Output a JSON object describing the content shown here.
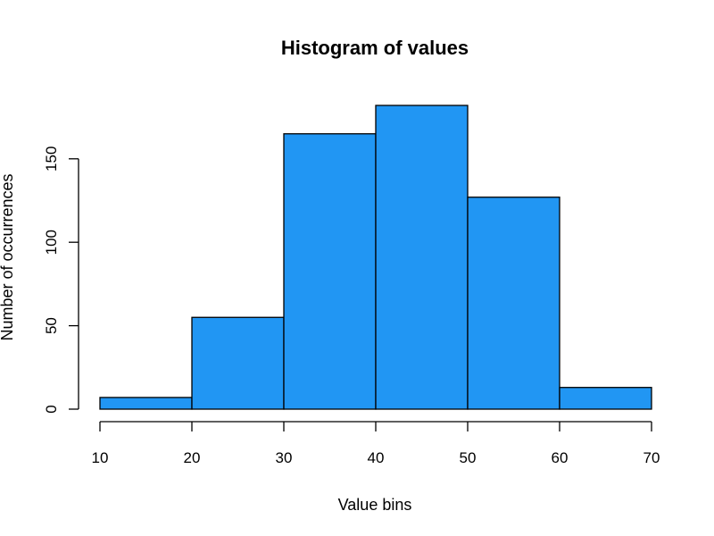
{
  "chart_data": {
    "type": "bar",
    "title": "Histogram of values",
    "xlabel": "Value bins",
    "ylabel": "Number of occurrences",
    "bins": [
      {
        "from": 10,
        "to": 20,
        "count": 7
      },
      {
        "from": 20,
        "to": 30,
        "count": 55
      },
      {
        "from": 30,
        "to": 40,
        "count": 165
      },
      {
        "from": 40,
        "to": 50,
        "count": 182
      },
      {
        "from": 50,
        "to": 60,
        "count": 127
      },
      {
        "from": 60,
        "to": 70,
        "count": 13
      }
    ],
    "xlim": [
      10,
      70
    ],
    "ylim": [
      0,
      182
    ],
    "x_ticks": [
      "10",
      "20",
      "30",
      "40",
      "50",
      "60",
      "70"
    ],
    "y_ticks": [
      "0",
      "50",
      "100",
      "150"
    ],
    "bar_color": "#2196F3",
    "bar_edge_color": "#000000",
    "grid": false,
    "legend": false
  }
}
